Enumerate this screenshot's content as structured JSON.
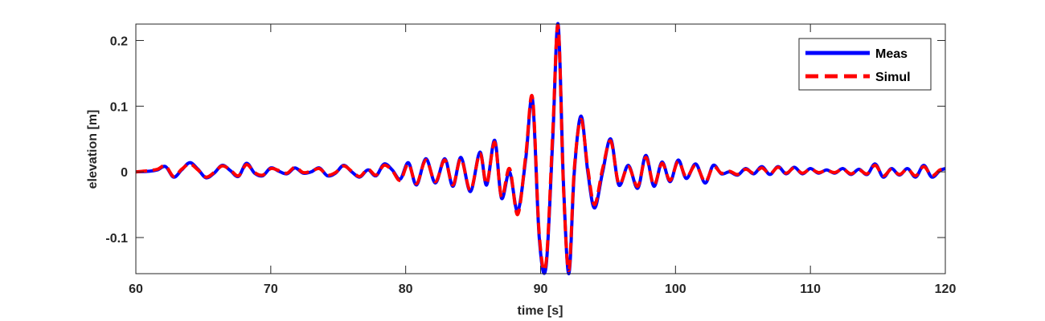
{
  "chart_data": {
    "type": "line",
    "title": "",
    "xlabel": "time [s]",
    "ylabel": "elevation [m]",
    "xlim": [
      60,
      120
    ],
    "ylim": [
      -0.155,
      0.225
    ],
    "xticks": [
      60,
      70,
      80,
      90,
      100,
      110,
      120
    ],
    "xtick_labels": [
      "60",
      "70",
      "80",
      "90",
      "100",
      "110",
      "120"
    ],
    "yticks": [
      -0.1,
      0,
      0.1,
      0.2
    ],
    "ytick_labels": [
      "-0.1",
      "0",
      "0.1",
      "0.2"
    ],
    "grid": false,
    "legend_position": "top-right",
    "series": [
      {
        "name": "Meas",
        "color": "#0000ff",
        "style": "solid",
        "x": [
          60.0,
          61.0,
          61.6,
          62.2,
          62.8,
          63.4,
          64.0,
          64.6,
          65.2,
          65.8,
          66.4,
          67.0,
          67.6,
          68.2,
          68.8,
          69.4,
          70.0,
          70.6,
          71.2,
          71.8,
          72.4,
          73.0,
          73.6,
          74.2,
          74.8,
          75.4,
          76.0,
          76.6,
          77.2,
          77.8,
          78.4,
          79.0,
          79.6,
          80.2,
          80.8,
          81.5,
          82.2,
          82.9,
          83.5,
          84.1,
          84.8,
          85.5,
          86.0,
          86.6,
          87.1,
          87.7,
          88.3,
          88.9,
          89.4,
          89.9,
          90.4,
          90.9,
          91.3,
          91.7,
          92.1,
          92.5,
          93.0,
          93.5,
          94.0,
          94.6,
          95.2,
          95.8,
          96.5,
          97.2,
          97.8,
          98.4,
          99.0,
          99.6,
          100.2,
          100.8,
          101.5,
          102.2,
          102.8,
          103.4,
          104.0,
          104.6,
          105.2,
          105.8,
          106.4,
          107.0,
          107.6,
          108.2,
          108.8,
          109.4,
          110.0,
          110.6,
          111.2,
          111.8,
          112.4,
          113.0,
          113.6,
          114.2,
          114.8,
          115.4,
          116.0,
          116.6,
          117.2,
          117.8,
          118.4,
          119.0,
          119.6,
          120.0
        ],
        "values": [
          0.0,
          0.001,
          0.003,
          0.008,
          -0.008,
          0.003,
          0.014,
          0.004,
          -0.009,
          -0.002,
          0.01,
          0.002,
          -0.007,
          0.013,
          -0.002,
          -0.006,
          0.006,
          0.001,
          -0.003,
          0.006,
          -0.002,
          0.0,
          0.006,
          -0.006,
          -0.002,
          0.01,
          0.0,
          -0.008,
          0.003,
          -0.006,
          0.012,
          0.003,
          -0.011,
          0.014,
          -0.02,
          0.02,
          -0.017,
          0.02,
          -0.022,
          0.022,
          -0.03,
          0.03,
          -0.02,
          0.048,
          -0.04,
          0.0,
          -0.06,
          0.02,
          0.11,
          -0.1,
          -0.145,
          0.05,
          0.225,
          -0.02,
          -0.155,
          0.0,
          0.085,
          0.0,
          -0.055,
          0.0,
          0.05,
          -0.02,
          0.01,
          -0.025,
          0.025,
          -0.022,
          0.015,
          -0.015,
          0.018,
          -0.01,
          0.012,
          -0.017,
          0.01,
          -0.003,
          0.0,
          -0.005,
          0.005,
          -0.003,
          0.008,
          -0.004,
          0.008,
          -0.003,
          0.007,
          -0.003,
          0.005,
          -0.002,
          0.003,
          -0.002,
          0.005,
          -0.004,
          0.004,
          -0.004,
          0.012,
          -0.008,
          0.005,
          -0.005,
          0.005,
          -0.008,
          0.01,
          -0.008,
          0.002,
          0.005
        ]
      },
      {
        "name": "Simul",
        "color": "#ff0000",
        "style": "dashed",
        "x": [
          60.0,
          61.0,
          61.6,
          62.2,
          62.8,
          63.4,
          64.0,
          64.6,
          65.2,
          65.8,
          66.4,
          67.0,
          67.6,
          68.2,
          68.8,
          69.4,
          70.0,
          70.6,
          71.2,
          71.8,
          72.4,
          73.0,
          73.6,
          74.2,
          74.8,
          75.4,
          76.0,
          76.6,
          77.2,
          77.8,
          78.4,
          79.0,
          79.6,
          80.2,
          80.8,
          81.5,
          82.2,
          82.9,
          83.5,
          84.1,
          84.8,
          85.5,
          86.0,
          86.6,
          87.1,
          87.7,
          88.3,
          88.9,
          89.4,
          89.9,
          90.4,
          90.9,
          91.3,
          91.7,
          92.1,
          92.5,
          93.0,
          93.5,
          94.0,
          94.6,
          95.2,
          95.8,
          96.5,
          97.2,
          97.8,
          98.4,
          99.0,
          99.6,
          100.2,
          100.8,
          101.5,
          102.2,
          102.8,
          103.4,
          104.0,
          104.6,
          105.2,
          105.8,
          106.4,
          107.0,
          107.6,
          108.2,
          108.8,
          109.4,
          110.0,
          110.6,
          111.2,
          111.8,
          112.4,
          113.0,
          113.6,
          114.2,
          114.8,
          115.4,
          116.0,
          116.6,
          117.2,
          117.8,
          118.4,
          119.0,
          119.6,
          120.0
        ],
        "values": [
          0.0,
          0.002,
          0.004,
          0.009,
          -0.007,
          0.004,
          0.012,
          0.003,
          -0.008,
          -0.001,
          0.009,
          0.003,
          -0.006,
          0.011,
          -0.001,
          -0.005,
          0.005,
          0.002,
          -0.002,
          0.007,
          -0.001,
          0.001,
          0.005,
          -0.005,
          -0.001,
          0.009,
          0.001,
          -0.007,
          0.004,
          -0.005,
          0.01,
          0.002,
          -0.013,
          0.012,
          -0.018,
          0.018,
          -0.015,
          0.018,
          -0.02,
          0.02,
          -0.028,
          0.028,
          -0.018,
          0.045,
          -0.038,
          0.005,
          -0.065,
          0.025,
          0.113,
          -0.095,
          -0.14,
          0.06,
          0.222,
          -0.025,
          -0.15,
          0.005,
          0.08,
          0.005,
          -0.05,
          0.005,
          0.047,
          -0.018,
          0.008,
          -0.022,
          0.022,
          -0.02,
          0.013,
          -0.013,
          0.016,
          -0.008,
          0.01,
          -0.015,
          0.008,
          -0.002,
          0.001,
          -0.004,
          0.004,
          -0.002,
          0.006,
          -0.003,
          0.007,
          -0.002,
          0.006,
          -0.002,
          0.004,
          -0.001,
          0.002,
          -0.001,
          0.004,
          -0.003,
          0.003,
          -0.003,
          0.01,
          -0.006,
          0.004,
          -0.004,
          0.004,
          -0.006,
          0.008,
          -0.006,
          0.003,
          0.004
        ]
      }
    ]
  }
}
